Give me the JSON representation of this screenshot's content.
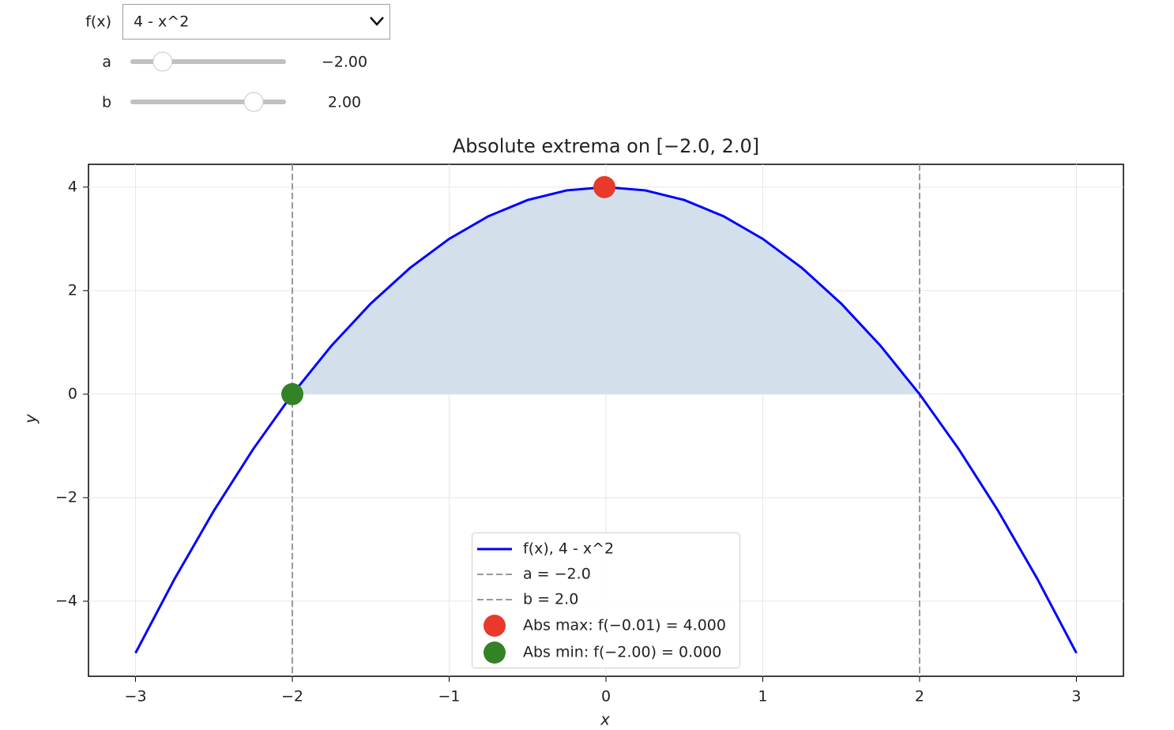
{
  "widgets": {
    "dropdown": {
      "label": "f(x)",
      "value": "4 - x^2"
    },
    "sliders": [
      {
        "label": "a",
        "value": -2,
        "value_label": "−2.00",
        "range": [
          -3,
          3
        ]
      },
      {
        "label": "b",
        "value": 2,
        "value_label": "2.00",
        "range": [
          -3,
          3
        ]
      }
    ]
  },
  "chart_data": {
    "type": "line",
    "title": "Absolute extrema on [−2.0, 2.0]",
    "xlabel": "x",
    "ylabel": "y",
    "xlim": [
      -3.3,
      3.3
    ],
    "ylim": [
      -5.45,
      4.44
    ],
    "xticks": [
      {
        "value": -3,
        "label": "−3"
      },
      {
        "value": -2,
        "label": "−2"
      },
      {
        "value": -1,
        "label": "−1"
      },
      0,
      1,
      2,
      3
    ],
    "yticks": [
      {
        "value": -4,
        "label": "−4"
      },
      {
        "value": -2,
        "label": "−2"
      },
      0,
      2,
      4
    ],
    "grid": true,
    "fill_color": "#d3e0ec",
    "series": [
      {
        "name": "f(x), 4 - x^2",
        "color": "#0000ff",
        "x": [
          -3,
          -2.75,
          -2.5,
          -2.25,
          -2,
          -1.75,
          -1.5,
          -1.25,
          -1,
          -0.75,
          -0.5,
          -0.25,
          0,
          0.25,
          0.5,
          0.75,
          1,
          1.25,
          1.5,
          1.75,
          2,
          2.25,
          2.5,
          2.75,
          3
        ],
        "values": [
          -5,
          -3.5625,
          -2.25,
          -1.0625,
          0,
          0.9375,
          1.75,
          2.4375,
          3,
          3.4375,
          3.75,
          3.9375,
          4,
          3.9375,
          3.75,
          3.4375,
          3,
          2.4375,
          1.75,
          0.9375,
          0,
          -1.0625,
          -2.25,
          -3.5625,
          -5
        ]
      }
    ],
    "vlines": [
      {
        "name": "a = −2.0",
        "x": -2,
        "color": "#999999"
      },
      {
        "name": "b = 2.0",
        "x": 2,
        "color": "#999999"
      }
    ],
    "points": [
      {
        "name": "Abs max: f(−0.01) = 4.000",
        "x": -0.01,
        "y": 4,
        "color": "#e8392b"
      },
      {
        "name": "Abs min: f(−2.00) = 0.000",
        "x": -2,
        "y": 0,
        "color": "#338226"
      }
    ]
  }
}
